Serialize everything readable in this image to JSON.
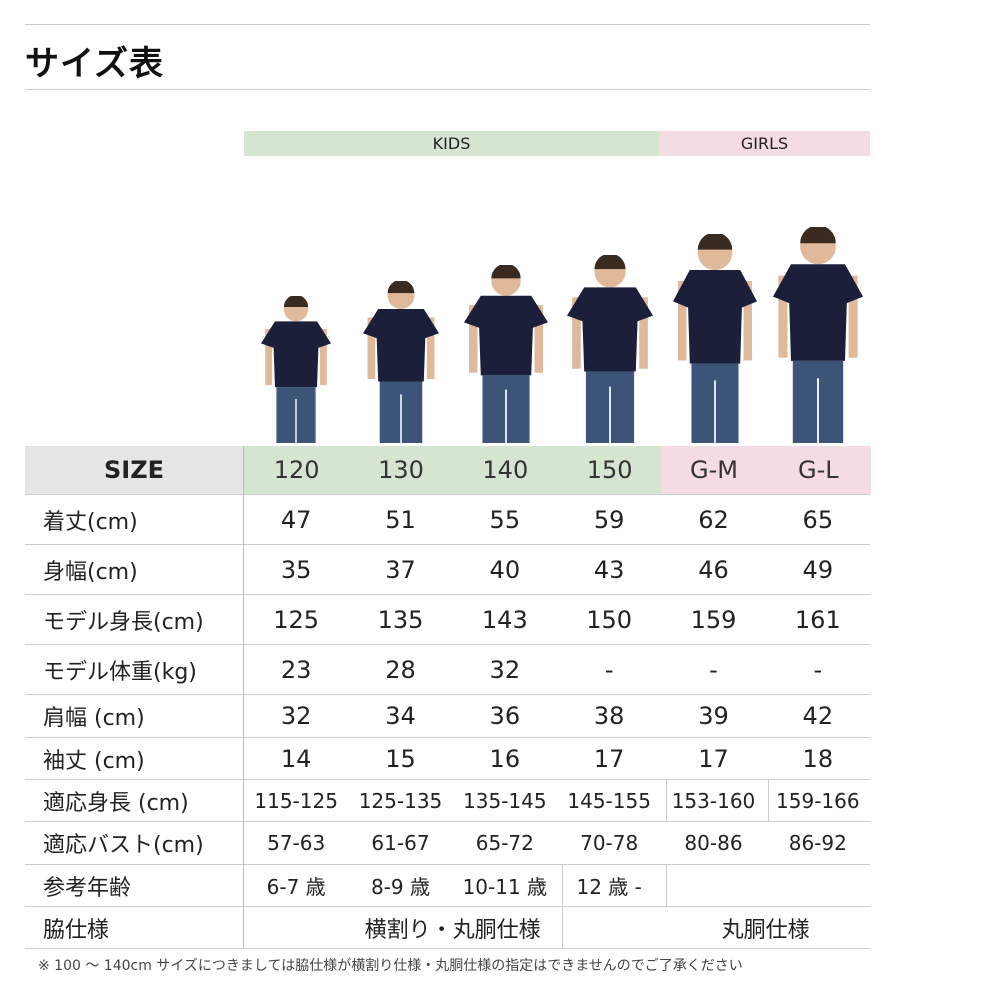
{
  "title": "サイズ表",
  "bands": {
    "kids": "KIDS",
    "girls": "GIRLS"
  },
  "colors": {
    "kids": "#d5e6d0",
    "girls": "#f5dbe3",
    "size_label_bg": "#e6e6e6",
    "shirt": "#1c1f3a",
    "jeans": "#3c5478"
  },
  "size_row": {
    "label": "SIZE",
    "values": [
      "120",
      "130",
      "140",
      "150",
      "G-M",
      "G-L"
    ]
  },
  "rows": [
    {
      "label": "着丈(cm)",
      "values": [
        "47",
        "51",
        "55",
        "59",
        "62",
        "65"
      ]
    },
    {
      "label": "身幅(cm)",
      "values": [
        "35",
        "37",
        "40",
        "43",
        "46",
        "49"
      ]
    },
    {
      "label": "モデル身長(cm)",
      "values": [
        "125",
        "135",
        "143",
        "150",
        "159",
        "161"
      ]
    },
    {
      "label": "モデル体重(kg)",
      "values": [
        "23",
        "28",
        "32",
        "-",
        "-",
        "-"
      ]
    },
    {
      "label": "肩幅 (cm)",
      "values": [
        "32",
        "34",
        "36",
        "38",
        "39",
        "42"
      ]
    },
    {
      "label": "袖丈 (cm)",
      "values": [
        "14",
        "15",
        "16",
        "17",
        "17",
        "18"
      ]
    },
    {
      "label": "適応身長 (cm)",
      "values": [
        "115-125",
        "125-135",
        "135-145",
        "145-155",
        "153-160",
        "159-166"
      ]
    },
    {
      "label": "適応バスト(cm)",
      "values": [
        "57-63",
        "61-67",
        "65-72",
        "70-78",
        "80-86",
        "86-92"
      ]
    },
    {
      "label": "参考年齢",
      "values": [
        "6-7 歳",
        "8-9 歳",
        "10-11 歳",
        "12 歳 -",
        "",
        ""
      ]
    },
    {
      "label": "脇仕様",
      "spans": [
        "横割り・丸胴仕様",
        "丸胴仕様"
      ]
    }
  ],
  "footnote": "※ 100 ～ 140cm サイズにつきましては脇仕様が横割り仕様・丸胴仕様の指定はできませんのでご了承ください"
}
